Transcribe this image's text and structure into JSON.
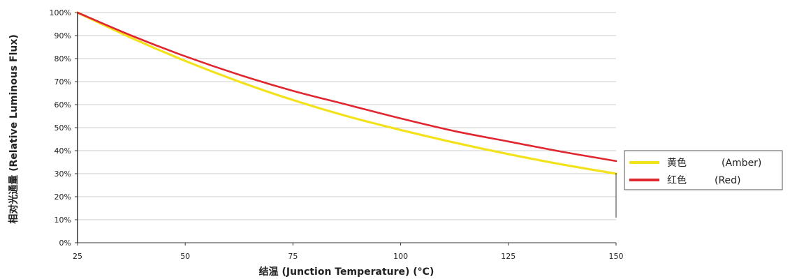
{
  "chart_data": {
    "type": "line",
    "title": "",
    "xlabel": "结温 (Junction Temperature) (°C)",
    "ylabel": "相对光通量 (Relative Luminous Flux)",
    "xlim": [
      25,
      150
    ],
    "ylim": [
      0,
      100
    ],
    "x_ticks": [
      "25",
      "50",
      "75",
      "100",
      "125",
      "150"
    ],
    "y_ticks": [
      "0%",
      "10%",
      "20%",
      "30%",
      "40%",
      "50%",
      "60%",
      "70%",
      "80%",
      "90%",
      "100%"
    ],
    "grid": "horizontal",
    "legend_position": "right",
    "series": [
      {
        "name": "黄色 (Amber)",
        "color": "#f2e21b",
        "x": [
          25,
          37.5,
          50,
          62.5,
          75,
          87.5,
          100,
          112.5,
          125,
          137.5,
          150
        ],
        "y": [
          100,
          89,
          79,
          70,
          62,
          55,
          49,
          43.5,
          38.5,
          34,
          30
        ]
      },
      {
        "name": "红色 (Red)",
        "color": "#e0262e",
        "x": [
          25,
          37.5,
          50,
          62.5,
          75,
          87.5,
          100,
          112.5,
          125,
          137.5,
          150
        ],
        "y": [
          100,
          90,
          81,
          73,
          66,
          60,
          54,
          48.5,
          44,
          39.5,
          35.5
        ]
      }
    ],
    "legend": {
      "items": [
        {
          "label_cn": "黄色",
          "label_en": "(Amber)",
          "color": "#f2e21b"
        },
        {
          "label_cn": "红色",
          "label_en": "(Red)",
          "color": "#e0262e"
        }
      ]
    }
  }
}
